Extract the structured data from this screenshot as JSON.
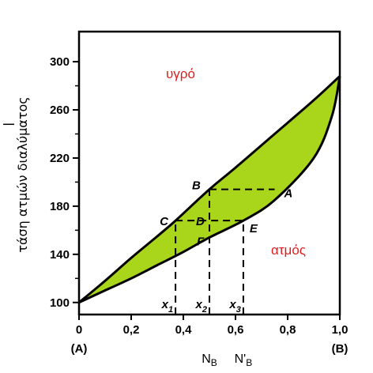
{
  "chart_data": {
    "type": "area",
    "title": "",
    "ylabel": "τάση ατμών διαλύματος",
    "xlabel": "",
    "xlim": [
      0,
      1.0
    ],
    "ylim": [
      90,
      325
    ],
    "x_ticks": [
      "0",
      "0,2",
      "0,4",
      "0,6",
      "0,8",
      "1,0"
    ],
    "x_tick_values": [
      0,
      0.2,
      0.4,
      0.6,
      0.8,
      1.0
    ],
    "y_ticks": [
      "100",
      "140",
      "180",
      "220",
      "260",
      "300"
    ],
    "y_tick_values": [
      100,
      140,
      180,
      220,
      260,
      300
    ],
    "fill_color": "#a9d51a",
    "liquid_curve": {
      "x": [
        0,
        0.1,
        0.2,
        0.3,
        0.37,
        0.5,
        0.6,
        0.75,
        0.9,
        1.0
      ],
      "y": [
        100,
        118,
        137,
        155,
        168,
        194,
        212,
        240,
        268,
        288
      ]
    },
    "vapor_curve": {
      "x": [
        0,
        0.1,
        0.2,
        0.3,
        0.4,
        0.5,
        0.63,
        0.75,
        0.9,
        0.97,
        1.0
      ],
      "y": [
        100,
        110,
        120,
        131,
        142,
        154,
        168,
        185,
        220,
        255,
        288
      ]
    },
    "regions": {
      "liquid": "υγρό",
      "vapor": "ατμός"
    },
    "points": [
      {
        "label": "A",
        "x": 0.75,
        "y": 194
      },
      {
        "label": "B",
        "x": 0.5,
        "y": 194
      },
      {
        "label": "C",
        "x": 0.37,
        "y": 168
      },
      {
        "label": "D",
        "x": 0.5,
        "y": 168
      },
      {
        "label": "E",
        "x": 0.63,
        "y": 168
      },
      {
        "label": "F",
        "x": 0.5,
        "y": 154
      }
    ],
    "dashed_lines": [
      {
        "x1": 0.5,
        "y1": 194,
        "x2": 0.75,
        "y2": 194
      },
      {
        "x1": 0.37,
        "y1": 168,
        "x2": 0.63,
        "y2": 168
      },
      {
        "x1": 0.37,
        "y1": 90,
        "x2": 0.37,
        "y2": 168
      },
      {
        "x1": 0.5,
        "y1": 90,
        "x2": 0.5,
        "y2": 194
      },
      {
        "x1": 0.63,
        "y1": 90,
        "x2": 0.63,
        "y2": 168
      }
    ],
    "composition_labels": [
      {
        "main": "x",
        "sub": "1",
        "x": 0.37
      },
      {
        "main": "x",
        "sub": "2",
        "x": 0.5
      },
      {
        "main": "x",
        "sub": "3",
        "x": 0.63
      }
    ],
    "bottom_labels": [
      {
        "main": "N",
        "sub": "B",
        "x": 0.5
      },
      {
        "main": "N'",
        "sub": "B",
        "x": 0.63
      }
    ],
    "endpoint_labels": [
      {
        "text": "(A)",
        "x": 0
      },
      {
        "text": "(B)",
        "x": 1.0
      }
    ]
  }
}
